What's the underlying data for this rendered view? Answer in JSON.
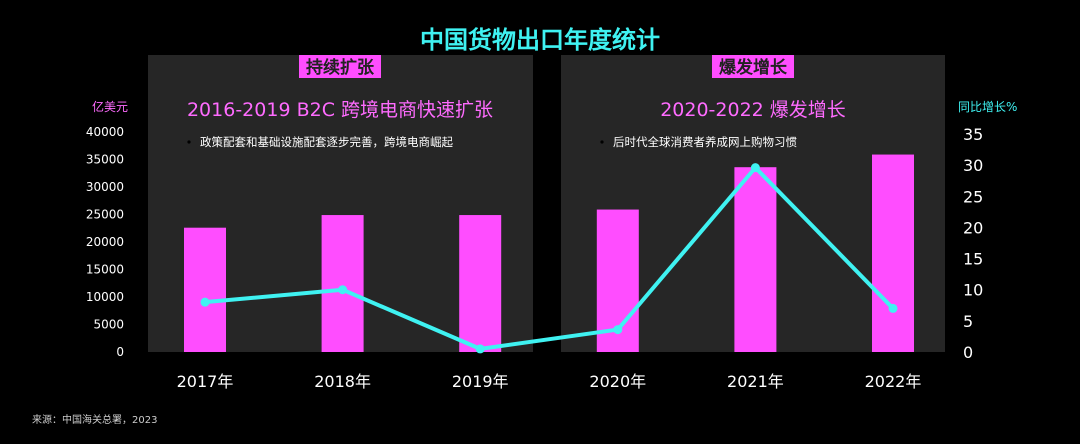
{
  "chart_data": {
    "type": "bar",
    "title": "中国货物出口年度统计",
    "categories": [
      "2017年",
      "2018年",
      "2019年",
      "2020年",
      "2021年",
      "2022年"
    ],
    "series": [
      {
        "values": [
          22600,
          24900,
          24900,
          25900,
          33600,
          35900
        ]
      },
      {
        "values": [
          8,
          10,
          0.5,
          3.6,
          29.6,
          7
        ]
      }
    ],
    "y_left": {
      "label": "亿美元",
      "ticks": [
        0,
        5000,
        10000,
        15000,
        20000,
        25000,
        30000,
        35000,
        40000
      ],
      "ylim": [
        0,
        40000
      ]
    },
    "y_right": {
      "label": "同比增长%",
      "ticks": [
        0,
        5,
        10,
        15,
        20,
        25,
        30,
        35
      ],
      "ylim": [
        0,
        35
      ]
    },
    "grid": false,
    "legend": "none",
    "panels": [
      {
        "badge": "持续扩张",
        "heading": "2016-2019 B2C 跨境电商快速扩张",
        "bullet": "政策配套和基础设施配套逐步完善，跨境电商崛起"
      },
      {
        "badge": "爆发增长",
        "heading": "2020-2022 爆发增长",
        "bullet": "后时代全球消费者养成网上购物习惯"
      }
    ],
    "colors": {
      "bar": "#ff4dff",
      "line": "#3ff2f2",
      "title": "#3ff2f2",
      "heading": "#ff6bff",
      "badge_bg": "#ff4dff",
      "badge_text": "#222222",
      "panel_bg": "#262626"
    }
  },
  "footer": {
    "source": "来源：中国海关总署，2023"
  }
}
